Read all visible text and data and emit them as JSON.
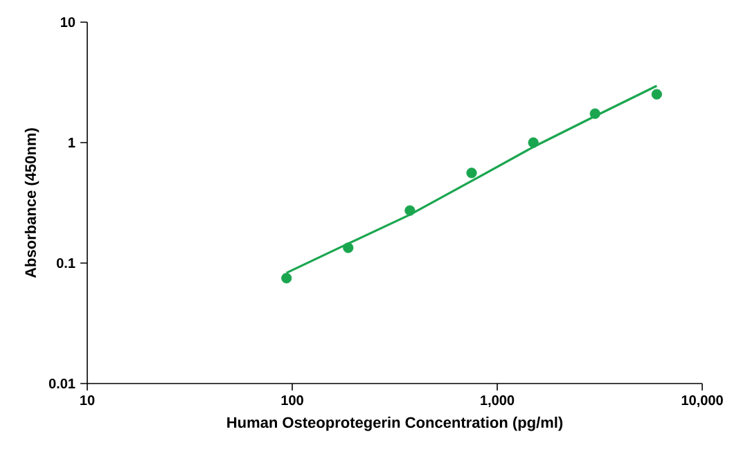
{
  "chart_data": {
    "type": "scatter",
    "xlabel": "Human Osteoprotegerin Concentration (pg/ml)",
    "ylabel": "Absorbance (450nm)",
    "log": "xy",
    "grid": false,
    "marker": "circle",
    "xlim": [
      10,
      10000
    ],
    "ylim": [
      0.01,
      10
    ],
    "xticks": [
      10,
      100,
      {
        "value": 1000,
        "label": "1,000"
      },
      {
        "value": 10000,
        "label": "10,000"
      }
    ],
    "yticks": [
      0.01,
      0.1,
      1,
      10
    ],
    "series": [
      {
        "color": "#1aa64f",
        "x": [
          93.75,
          187.5,
          375,
          750,
          1500,
          3000,
          6000
        ],
        "values": [
          0.075,
          0.134,
          0.273,
          0.56,
          1.0,
          1.74,
          2.52
        ]
      },
      {
        "type": "line",
        "color": "#1aa64f",
        "marker": "none",
        "line_style": "solid",
        "x": [
          93.75,
          187.5,
          375,
          750,
          1500,
          3000,
          6000
        ],
        "values": [
          0.083,
          0.145,
          0.252,
          0.48,
          0.92,
          1.66,
          2.96
        ]
      }
    ]
  }
}
